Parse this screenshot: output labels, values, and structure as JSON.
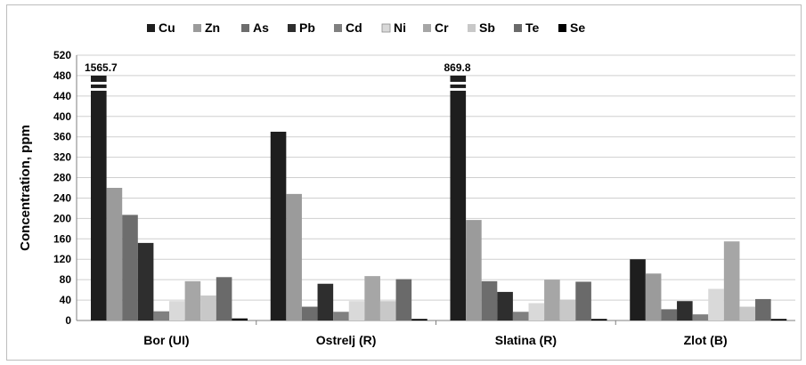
{
  "chart_data": {
    "type": "bar",
    "categories": [
      "Bor (UI)",
      "Ostrelj (R)",
      "Slatina (R)",
      "Zlot (B)"
    ],
    "ylabel": "Concentration, ppm",
    "xlabel": "",
    "ylim": [
      0,
      520
    ],
    "yticks": [
      0,
      40,
      80,
      120,
      160,
      200,
      240,
      280,
      320,
      360,
      400,
      440,
      480,
      520
    ],
    "grid": true,
    "legend_position": "top",
    "axis_break": true,
    "series": [
      {
        "name": "Cu",
        "color": "#1e1e1e",
        "values": [
          1565.7,
          370,
          869.8,
          120
        ]
      },
      {
        "name": "Zn",
        "color": "#9b9b9b",
        "values": [
          260,
          248,
          197,
          92
        ]
      },
      {
        "name": "As",
        "color": "#6d6d6d",
        "values": [
          207,
          27,
          77,
          22
        ]
      },
      {
        "name": "Pb",
        "color": "#2e2e2e",
        "values": [
          152,
          72,
          56,
          38
        ]
      },
      {
        "name": "Cd",
        "color": "#808080",
        "values": [
          18,
          17,
          17,
          12
        ]
      },
      {
        "name": "Ni",
        "color": "#d9d9d9",
        "values": [
          38,
          38,
          34,
          62
        ]
      },
      {
        "name": "Cr",
        "color": "#a6a6a6",
        "values": [
          77,
          87,
          80,
          155
        ]
      },
      {
        "name": "Sb",
        "color": "#c8c8c8",
        "values": [
          49,
          38,
          41,
          27
        ]
      },
      {
        "name": "Te",
        "color": "#6a6a6a",
        "values": [
          85,
          81,
          76,
          42
        ]
      },
      {
        "name": "Se",
        "color": "#000000",
        "values": [
          4,
          3,
          3,
          3
        ]
      }
    ],
    "annotations": [
      {
        "category": "Bor (UI)",
        "series": "Cu",
        "label": "1565.7"
      },
      {
        "category": "Slatina (R)",
        "series": "Cu",
        "label": "869.8"
      }
    ]
  }
}
